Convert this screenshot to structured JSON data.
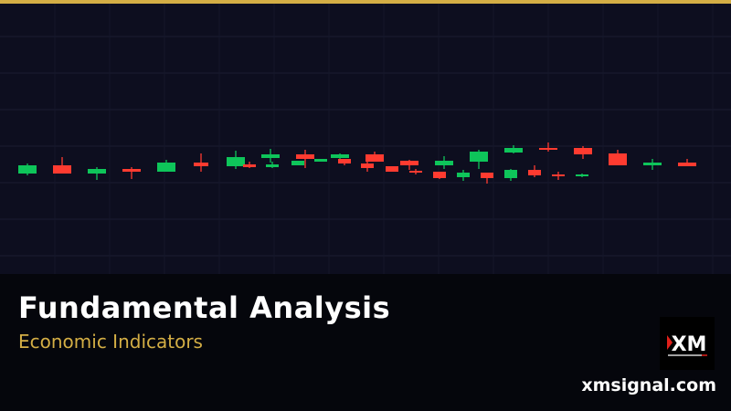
{
  "banner": {
    "title": "Fundamental Analysis",
    "subtitle": "Economic Indicators",
    "website": "xmsignal.com",
    "logo_text": "XM",
    "accent_color": "#d4ae45",
    "up_color": "#0ec55a",
    "down_color": "#ff3b30"
  },
  "chart_data": {
    "type": "candlestick",
    "grid": true,
    "candles": [
      {
        "o": 110,
        "h": 121,
        "l": 108,
        "c": 119
      },
      {
        "o": 119,
        "h": 128,
        "l": 110,
        "c": 110
      },
      {
        "o": 110,
        "h": 117,
        "l": 103,
        "c": 115
      },
      {
        "o": 115,
        "h": 117,
        "l": 104,
        "c": 112
      },
      {
        "o": 112,
        "h": 125,
        "l": 112,
        "c": 122
      },
      {
        "o": 122,
        "h": 132,
        "l": 112,
        "c": 118
      },
      {
        "o": 118,
        "h": 135,
        "l": 115,
        "c": 128
      },
      {
        "o": 120,
        "h": 123,
        "l": 116,
        "c": 117
      },
      {
        "o": 127,
        "h": 137,
        "l": 122,
        "c": 131
      },
      {
        "o": 117,
        "h": 123,
        "l": 116,
        "c": 120
      },
      {
        "o": 119,
        "h": 124,
        "l": 119,
        "c": 124
      },
      {
        "o": 131,
        "h": 136,
        "l": 116,
        "c": 126
      },
      {
        "o": 123,
        "h": 126,
        "l": 123,
        "c": 126
      },
      {
        "o": 127,
        "h": 132,
        "l": 126,
        "c": 131
      },
      {
        "o": 126,
        "h": 126,
        "l": 119,
        "c": 121
      },
      {
        "o": 121,
        "h": 123,
        "l": 112,
        "c": 116
      },
      {
        "o": 131,
        "h": 134,
        "l": 123,
        "c": 123
      },
      {
        "o": 118,
        "h": 118,
        "l": 112,
        "c": 112
      },
      {
        "o": 124,
        "h": 125,
        "l": 114,
        "c": 119
      },
      {
        "o": 113,
        "h": 115,
        "l": 109,
        "c": 111
      },
      {
        "o": 112,
        "h": 112,
        "l": 104,
        "c": 105
      },
      {
        "o": 119,
        "h": 129,
        "l": 115,
        "c": 124
      },
      {
        "o": 106,
        "h": 114,
        "l": 102,
        "c": 111
      },
      {
        "o": 123,
        "h": 136,
        "l": 115,
        "c": 134
      },
      {
        "o": 111,
        "h": 111,
        "l": 99,
        "c": 105
      },
      {
        "o": 133,
        "h": 141,
        "l": 132,
        "c": 138
      },
      {
        "o": 105,
        "h": 115,
        "l": 102,
        "c": 114
      },
      {
        "o": 114,
        "h": 119,
        "l": 106,
        "c": 108
      },
      {
        "o": 138,
        "h": 144,
        "l": 134,
        "c": 136
      },
      {
        "o": 109,
        "h": 112,
        "l": 103,
        "c": 107
      },
      {
        "o": 138,
        "h": 140,
        "l": 126,
        "c": 131
      },
      {
        "o": 107,
        "h": 110,
        "l": 106,
        "c": 109
      },
      {
        "o": 132,
        "h": 136,
        "l": 119,
        "c": 119
      },
      {
        "o": 119,
        "h": 126,
        "l": 114,
        "c": 122
      },
      {
        "o": 122,
        "h": 126,
        "l": 118,
        "c": 118
      }
    ]
  }
}
